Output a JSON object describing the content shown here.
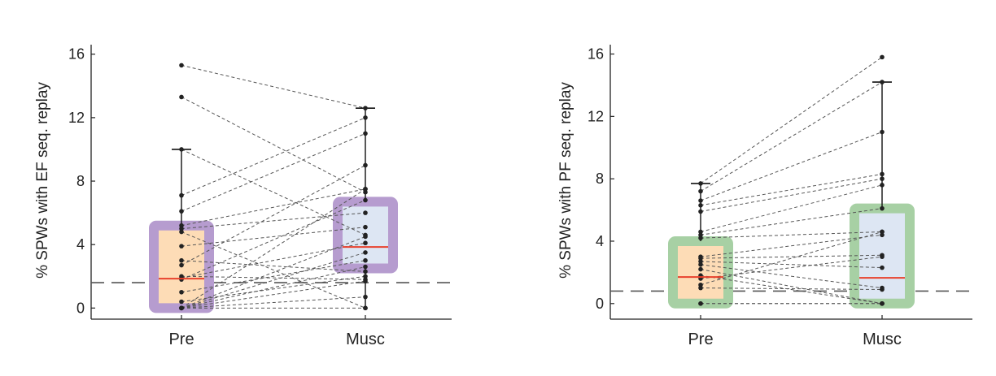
{
  "chart_data": [
    {
      "type": "box",
      "ylabel": "% SPWs  with EF seq. replay",
      "categories": [
        "Pre",
        "Musc"
      ],
      "yticks": [
        0,
        4,
        8,
        12,
        16
      ],
      "ylim": [
        -0.7,
        16.6
      ],
      "chance_level": 1.6,
      "box_fill": [
        "#fddcb6",
        "#dde6f3"
      ],
      "box_border": "#b69ccf",
      "median_color": "#e8412c",
      "boxes": [
        {
          "q1": 0.0,
          "median": 1.85,
          "q3": 5.2,
          "whisker_low": 0.0,
          "whisker_high": 10.0
        },
        {
          "q1": 2.5,
          "median": 3.85,
          "q3": 6.7,
          "whisker_low": 0.0,
          "whisker_high": 12.6
        }
      ],
      "pairs": [
        [
          15.3,
          12.6
        ],
        [
          13.3,
          7.3
        ],
        [
          10.0,
          4.6
        ],
        [
          7.1,
          12.0
        ],
        [
          6.1,
          11.0
        ],
        [
          5.2,
          7.5
        ],
        [
          5.0,
          6.0
        ],
        [
          4.8,
          0.0
        ],
        [
          3.9,
          5.1
        ],
        [
          3.0,
          2.3
        ],
        [
          2.7,
          9.0
        ],
        [
          2.0,
          1.8
        ],
        [
          1.9,
          4.1
        ],
        [
          1.8,
          6.8
        ],
        [
          1.0,
          3.0
        ],
        [
          0.4,
          2.0
        ],
        [
          0.0,
          0.7
        ],
        [
          0.0,
          0.0
        ],
        [
          0.0,
          1.7
        ],
        [
          0.0,
          3.5
        ],
        [
          0.0,
          4.5
        ],
        [
          0.0,
          2.6
        ],
        [
          0.0,
          7.5
        ]
      ]
    },
    {
      "type": "box",
      "ylabel": "% SPWs  with PF seq. replay",
      "categories": [
        "Pre",
        "Musc"
      ],
      "yticks": [
        0,
        4,
        8,
        12,
        16
      ],
      "ylim": [
        -1.0,
        16.6
      ],
      "chance_level": 0.8,
      "box_fill": [
        "#fddcb6",
        "#dde6f3"
      ],
      "box_border": "#a7d0a4",
      "median_color": "#e8412c",
      "boxes": [
        {
          "q1": 0.0,
          "median": 1.7,
          "q3": 4.0,
          "whisker_low": 0.0,
          "whisker_high": 7.7
        },
        {
          "q1": 0.0,
          "median": 1.65,
          "q3": 6.1,
          "whisker_low": 0.0,
          "whisker_high": 14.2
        }
      ],
      "pairs": [
        [
          7.7,
          15.8
        ],
        [
          7.2,
          14.2
        ],
        [
          6.6,
          11.0
        ],
        [
          6.3,
          8.3
        ],
        [
          5.9,
          8.0
        ],
        [
          4.6,
          7.6
        ],
        [
          4.4,
          6.1
        ],
        [
          4.2,
          4.6
        ],
        [
          3.0,
          4.4
        ],
        [
          2.9,
          3.1
        ],
        [
          2.7,
          2.3
        ],
        [
          2.5,
          1.0
        ],
        [
          2.2,
          0.0
        ],
        [
          1.8,
          0.0
        ],
        [
          1.6,
          3.0
        ],
        [
          1.2,
          4.6
        ],
        [
          1.0,
          0.9
        ],
        [
          0.0,
          0.0
        ],
        [
          0.0,
          0.0
        ]
      ]
    }
  ]
}
